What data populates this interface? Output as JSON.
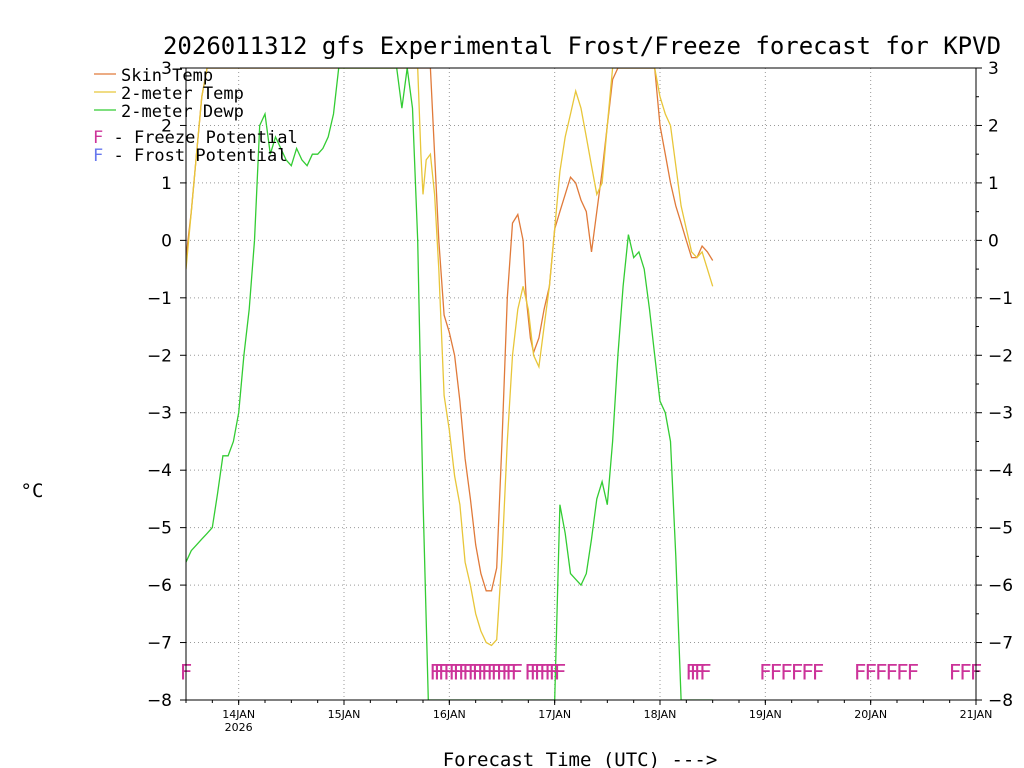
{
  "chart_data": {
    "type": "line",
    "title": "2026011312 gfs Experimental Frost/Freeze forecast for KPVD",
    "ylabel": "°C",
    "xlabel": "Forecast Time (UTC) --->",
    "ylim": [
      -8,
      3
    ],
    "yticks": [
      3,
      2,
      1,
      0,
      -1,
      -2,
      -3,
      -4,
      -5,
      -6,
      -7,
      -8
    ],
    "ytick_labels": [
      "3",
      "2",
      "1",
      "0",
      "−1",
      "−2",
      "−3",
      "−4",
      "−5",
      "−6",
      "−7",
      "−8"
    ],
    "xlim": [
      13.5,
      21.0
    ],
    "xticks": [
      {
        "x": 14,
        "label": "14JAN",
        "sublabel": "2026"
      },
      {
        "x": 15,
        "label": "15JAN",
        "sublabel": ""
      },
      {
        "x": 16,
        "label": "16JAN",
        "sublabel": ""
      },
      {
        "x": 17,
        "label": "17JAN",
        "sublabel": ""
      },
      {
        "x": 18,
        "label": "18JAN",
        "sublabel": ""
      },
      {
        "x": 19,
        "label": "19JAN",
        "sublabel": ""
      },
      {
        "x": 20,
        "label": "20JAN",
        "sublabel": ""
      },
      {
        "x": 21,
        "label": "21JAN",
        "sublabel": ""
      }
    ],
    "grid": true,
    "series": [
      {
        "name": "Skin Temp",
        "color": "#e07a3a",
        "x": [
          13.5,
          13.55,
          13.6,
          13.65,
          13.7,
          13.75,
          13.85,
          14.0,
          14.5,
          15.0,
          15.5,
          15.78,
          15.82,
          15.86,
          15.9,
          15.95,
          16.0,
          16.05,
          16.1,
          16.15,
          16.2,
          16.25,
          16.3,
          16.35,
          16.4,
          16.45,
          16.5,
          16.55,
          16.6,
          16.65,
          16.7,
          16.73,
          16.77,
          16.8,
          16.85,
          16.9,
          16.95,
          17.0,
          17.05,
          17.1,
          17.15,
          17.2,
          17.25,
          17.3,
          17.35,
          17.4,
          17.45,
          17.5,
          17.55,
          17.6,
          17.65,
          17.7,
          17.75,
          17.8,
          17.85,
          17.9,
          17.95,
          18.0,
          18.05,
          18.1,
          18.15,
          18.2,
          18.25,
          18.3,
          18.35,
          18.4,
          18.45,
          18.5
        ],
        "values": [
          -0.3,
          0.5,
          1.5,
          2.5,
          3.0,
          3.0,
          3.0,
          3.0,
          3.0,
          3.0,
          3.0,
          3.0,
          3.0,
          1.5,
          0.0,
          -1.3,
          -1.6,
          -2.0,
          -2.8,
          -3.8,
          -4.5,
          -5.3,
          -5.8,
          -6.1,
          -6.1,
          -5.7,
          -3.5,
          -1.0,
          0.3,
          0.45,
          0.0,
          -1.0,
          -1.7,
          -1.95,
          -1.7,
          -1.2,
          -0.8,
          0.2,
          0.5,
          0.8,
          1.1,
          1.0,
          0.7,
          0.5,
          -0.2,
          0.5,
          1.2,
          2.0,
          2.8,
          3.0,
          3.0,
          3.0,
          3.0,
          3.0,
          3.0,
          3.0,
          3.0,
          2.0,
          1.5,
          1.0,
          0.6,
          0.3,
          0.0,
          -0.3,
          -0.3,
          -0.1,
          -0.2,
          -0.35
        ]
      },
      {
        "name": "2-meter Temp",
        "color": "#e8c63a",
        "x": [
          13.5,
          13.55,
          13.6,
          13.65,
          13.7,
          13.75,
          13.85,
          14.0,
          14.5,
          15.0,
          15.5,
          15.7,
          15.73,
          15.75,
          15.78,
          15.82,
          15.86,
          15.9,
          15.95,
          16.0,
          16.05,
          16.1,
          16.15,
          16.2,
          16.25,
          16.3,
          16.35,
          16.4,
          16.45,
          16.5,
          16.55,
          16.6,
          16.65,
          16.7,
          16.75,
          16.8,
          16.85,
          16.9,
          16.95,
          17.0,
          17.05,
          17.1,
          17.15,
          17.2,
          17.25,
          17.3,
          17.35,
          17.4,
          17.45,
          17.5,
          17.55,
          17.6,
          17.65,
          17.7,
          17.75,
          17.8,
          17.85,
          17.9,
          17.95,
          18.0,
          18.05,
          18.1,
          18.15,
          18.2,
          18.25,
          18.3,
          18.35,
          18.4,
          18.45,
          18.5
        ],
        "values": [
          -0.5,
          0.5,
          1.5,
          2.5,
          3.0,
          3.0,
          3.0,
          3.0,
          3.0,
          3.0,
          3.0,
          3.0,
          1.5,
          0.8,
          1.4,
          1.5,
          0.8,
          -0.5,
          -2.7,
          -3.3,
          -4.1,
          -4.6,
          -5.6,
          -6.0,
          -6.5,
          -6.8,
          -7.0,
          -7.05,
          -6.95,
          -5.5,
          -3.5,
          -2.0,
          -1.2,
          -0.8,
          -1.2,
          -2.0,
          -2.2,
          -1.5,
          -0.8,
          0.2,
          1.2,
          1.8,
          2.2,
          2.6,
          2.3,
          1.8,
          1.3,
          0.8,
          1.0,
          2.0,
          3.0,
          3.0,
          3.0,
          3.0,
          3.0,
          3.0,
          3.0,
          3.0,
          3.0,
          2.5,
          2.2,
          2.0,
          1.3,
          0.6,
          0.2,
          -0.2,
          -0.3,
          -0.2,
          -0.5,
          -0.8
        ]
      },
      {
        "name": "2-meter Dewp",
        "color": "#33cc33",
        "x": [
          13.5,
          13.55,
          13.6,
          13.65,
          13.7,
          13.75,
          13.8,
          13.85,
          13.9,
          13.95,
          14.0,
          14.05,
          14.1,
          14.15,
          14.2,
          14.25,
          14.3,
          14.35,
          14.4,
          14.45,
          14.5,
          14.55,
          14.6,
          14.65,
          14.7,
          14.75,
          14.8,
          14.85,
          14.9,
          14.95,
          15.0,
          15.5,
          15.55,
          15.6,
          15.65,
          15.7,
          15.75,
          15.8,
          15.85,
          16.0,
          16.5,
          17.0,
          17.05,
          17.1,
          17.15,
          17.2,
          17.25,
          17.3,
          17.35,
          17.4,
          17.45,
          17.5,
          17.55,
          17.6,
          17.65,
          17.7,
          17.75,
          17.8,
          17.85,
          17.9,
          17.95,
          18.0,
          18.05,
          18.1,
          18.15,
          18.2,
          18.25,
          18.3,
          18.35,
          18.4,
          18.45,
          18.5
        ],
        "values": [
          -5.6,
          -5.4,
          -5.3,
          -5.2,
          -5.1,
          -5.0,
          -4.4,
          -3.75,
          -3.75,
          -3.5,
          -3.0,
          -2.0,
          -1.2,
          0.0,
          2.0,
          2.2,
          1.5,
          1.8,
          1.6,
          1.4,
          1.3,
          1.6,
          1.4,
          1.3,
          1.5,
          1.5,
          1.6,
          1.8,
          2.2,
          3.0,
          3.0,
          3.0,
          2.3,
          3.0,
          2.3,
          0.0,
          -4.5,
          -8.0,
          -8.0,
          -8.0,
          -8.0,
          -8.0,
          -4.6,
          -5.1,
          -5.8,
          -5.9,
          -6.0,
          -5.8,
          -5.2,
          -4.5,
          -4.2,
          -4.6,
          -3.5,
          -2.0,
          -0.8,
          0.1,
          -0.3,
          -0.2,
          -0.5,
          -1.2,
          -2.0,
          -2.8,
          -3.0,
          -3.5,
          -5.5,
          -8.0,
          -8.0,
          -8.0,
          -8.0,
          -8.0,
          -8.0,
          -8.0
        ]
      }
    ],
    "legend": {
      "placement": "top-left",
      "entries": [
        {
          "label": "Skin Temp",
          "color": "#e07a3a"
        },
        {
          "label": "2-meter Temp",
          "color": "#e8c63a"
        },
        {
          "label": "2-meter Dewp",
          "color": "#33cc33"
        }
      ],
      "notes": [
        {
          "symbol": "F",
          "text": " - Freeze Potential",
          "color": "#cc3399"
        },
        {
          "symbol": "F",
          "text": " - Frost Potential",
          "color": "#6677ee"
        }
      ]
    },
    "freeze_markers": {
      "symbol": "F",
      "color": "#cc3399",
      "y": -7.5,
      "x": [
        13.5,
        15.87,
        15.91,
        15.95,
        16.0,
        16.05,
        16.09,
        16.14,
        16.18,
        16.23,
        16.27,
        16.32,
        16.36,
        16.41,
        16.45,
        16.5,
        16.55,
        16.59,
        16.64,
        16.77,
        16.82,
        16.86,
        16.91,
        16.96,
        17.0,
        17.05,
        18.3,
        18.34,
        18.38,
        18.43,
        19.0,
        19.1,
        19.2,
        19.3,
        19.4,
        19.5,
        19.9,
        20.0,
        20.1,
        20.2,
        20.3,
        20.4,
        20.8,
        20.9,
        21.0
      ]
    }
  }
}
